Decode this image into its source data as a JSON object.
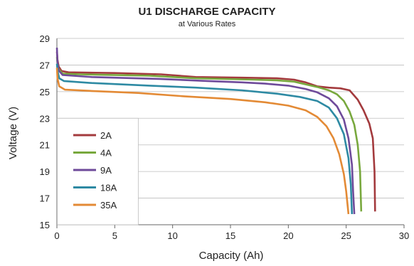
{
  "chart_data": {
    "type": "line",
    "title": "U1 DISCHARGE CAPACITY",
    "subtitle": "at Various Rates",
    "xlabel": "Capacity (Ah)",
    "ylabel": "Voltage (V)",
    "xlim": [
      0,
      30
    ],
    "ylim": [
      15,
      29
    ],
    "xticks": [
      "0",
      "5",
      "10",
      "15",
      "20",
      "25",
      "30"
    ],
    "yticks": [
      "15",
      "17",
      "19",
      "21",
      "23",
      "25",
      "27",
      "29"
    ],
    "grid": "horizontal",
    "legend_position": "bottom-left",
    "series": [
      {
        "name": "2A",
        "color": "#a33a3d",
        "points": [
          [
            0,
            28.0
          ],
          [
            0.05,
            27.4
          ],
          [
            0.15,
            26.9
          ],
          [
            0.4,
            26.55
          ],
          [
            1,
            26.45
          ],
          [
            5,
            26.4
          ],
          [
            9,
            26.3
          ],
          [
            12,
            26.1
          ],
          [
            16,
            26.05
          ],
          [
            19,
            26.0
          ],
          [
            20.5,
            25.9
          ],
          [
            21.5,
            25.7
          ],
          [
            22.5,
            25.4
          ],
          [
            23.5,
            25.3
          ],
          [
            24.5,
            25.25
          ],
          [
            25.3,
            25.1
          ],
          [
            26,
            24.4
          ],
          [
            26.5,
            23.6
          ],
          [
            27,
            22.6
          ],
          [
            27.3,
            21.5
          ],
          [
            27.45,
            19.0
          ],
          [
            27.5,
            16.0
          ]
        ]
      },
      {
        "name": "4A",
        "color": "#78a83d",
        "points": [
          [
            0,
            27.6
          ],
          [
            0.05,
            27.1
          ],
          [
            0.15,
            26.7
          ],
          [
            0.5,
            26.35
          ],
          [
            2,
            26.3
          ],
          [
            8,
            26.2
          ],
          [
            12,
            26.0
          ],
          [
            17,
            25.9
          ],
          [
            19,
            25.85
          ],
          [
            20.5,
            25.75
          ],
          [
            21.5,
            25.55
          ],
          [
            22.5,
            25.35
          ],
          [
            23.5,
            25.1
          ],
          [
            24.2,
            24.8
          ],
          [
            24.8,
            24.3
          ],
          [
            25.3,
            23.5
          ],
          [
            25.7,
            22.5
          ],
          [
            26.0,
            21.0
          ],
          [
            26.2,
            19.0
          ],
          [
            26.3,
            16.0
          ]
        ]
      },
      {
        "name": "9A",
        "color": "#6e4a9a",
        "points": [
          [
            0,
            28.3
          ],
          [
            0.05,
            27.2
          ],
          [
            0.15,
            26.6
          ],
          [
            0.5,
            26.25
          ],
          [
            3,
            26.1
          ],
          [
            9,
            25.95
          ],
          [
            13,
            25.8
          ],
          [
            16,
            25.7
          ],
          [
            18,
            25.6
          ],
          [
            20,
            25.45
          ],
          [
            21.5,
            25.2
          ],
          [
            22.5,
            24.95
          ],
          [
            23.5,
            24.5
          ],
          [
            24.2,
            23.9
          ],
          [
            24.8,
            22.9
          ],
          [
            25.2,
            21.5
          ],
          [
            25.5,
            19.5
          ],
          [
            25.6,
            17.5
          ],
          [
            25.7,
            15.8
          ]
        ]
      },
      {
        "name": "18A",
        "color": "#2e8aa3",
        "points": [
          [
            0,
            27.1
          ],
          [
            0.05,
            26.6
          ],
          [
            0.2,
            26.0
          ],
          [
            0.6,
            25.8
          ],
          [
            3,
            25.65
          ],
          [
            8,
            25.45
          ],
          [
            12,
            25.3
          ],
          [
            16,
            25.1
          ],
          [
            19,
            24.85
          ],
          [
            21,
            24.6
          ],
          [
            22.5,
            24.3
          ],
          [
            23.5,
            23.8
          ],
          [
            24.2,
            23.0
          ],
          [
            24.8,
            21.8
          ],
          [
            25.2,
            20.0
          ],
          [
            25.4,
            18.0
          ],
          [
            25.5,
            15.8
          ]
        ]
      },
      {
        "name": "35A",
        "color": "#e38a35",
        "points": [
          [
            0,
            26.8
          ],
          [
            0.05,
            26.0
          ],
          [
            0.2,
            25.4
          ],
          [
            0.7,
            25.15
          ],
          [
            3,
            25.05
          ],
          [
            7,
            24.9
          ],
          [
            11,
            24.65
          ],
          [
            15,
            24.45
          ],
          [
            18,
            24.2
          ],
          [
            20,
            23.95
          ],
          [
            21.5,
            23.6
          ],
          [
            22.5,
            23.1
          ],
          [
            23.3,
            22.4
          ],
          [
            23.9,
            21.5
          ],
          [
            24.4,
            20.3
          ],
          [
            24.8,
            18.8
          ],
          [
            25.0,
            17.5
          ],
          [
            25.2,
            15.8
          ]
        ]
      }
    ]
  }
}
